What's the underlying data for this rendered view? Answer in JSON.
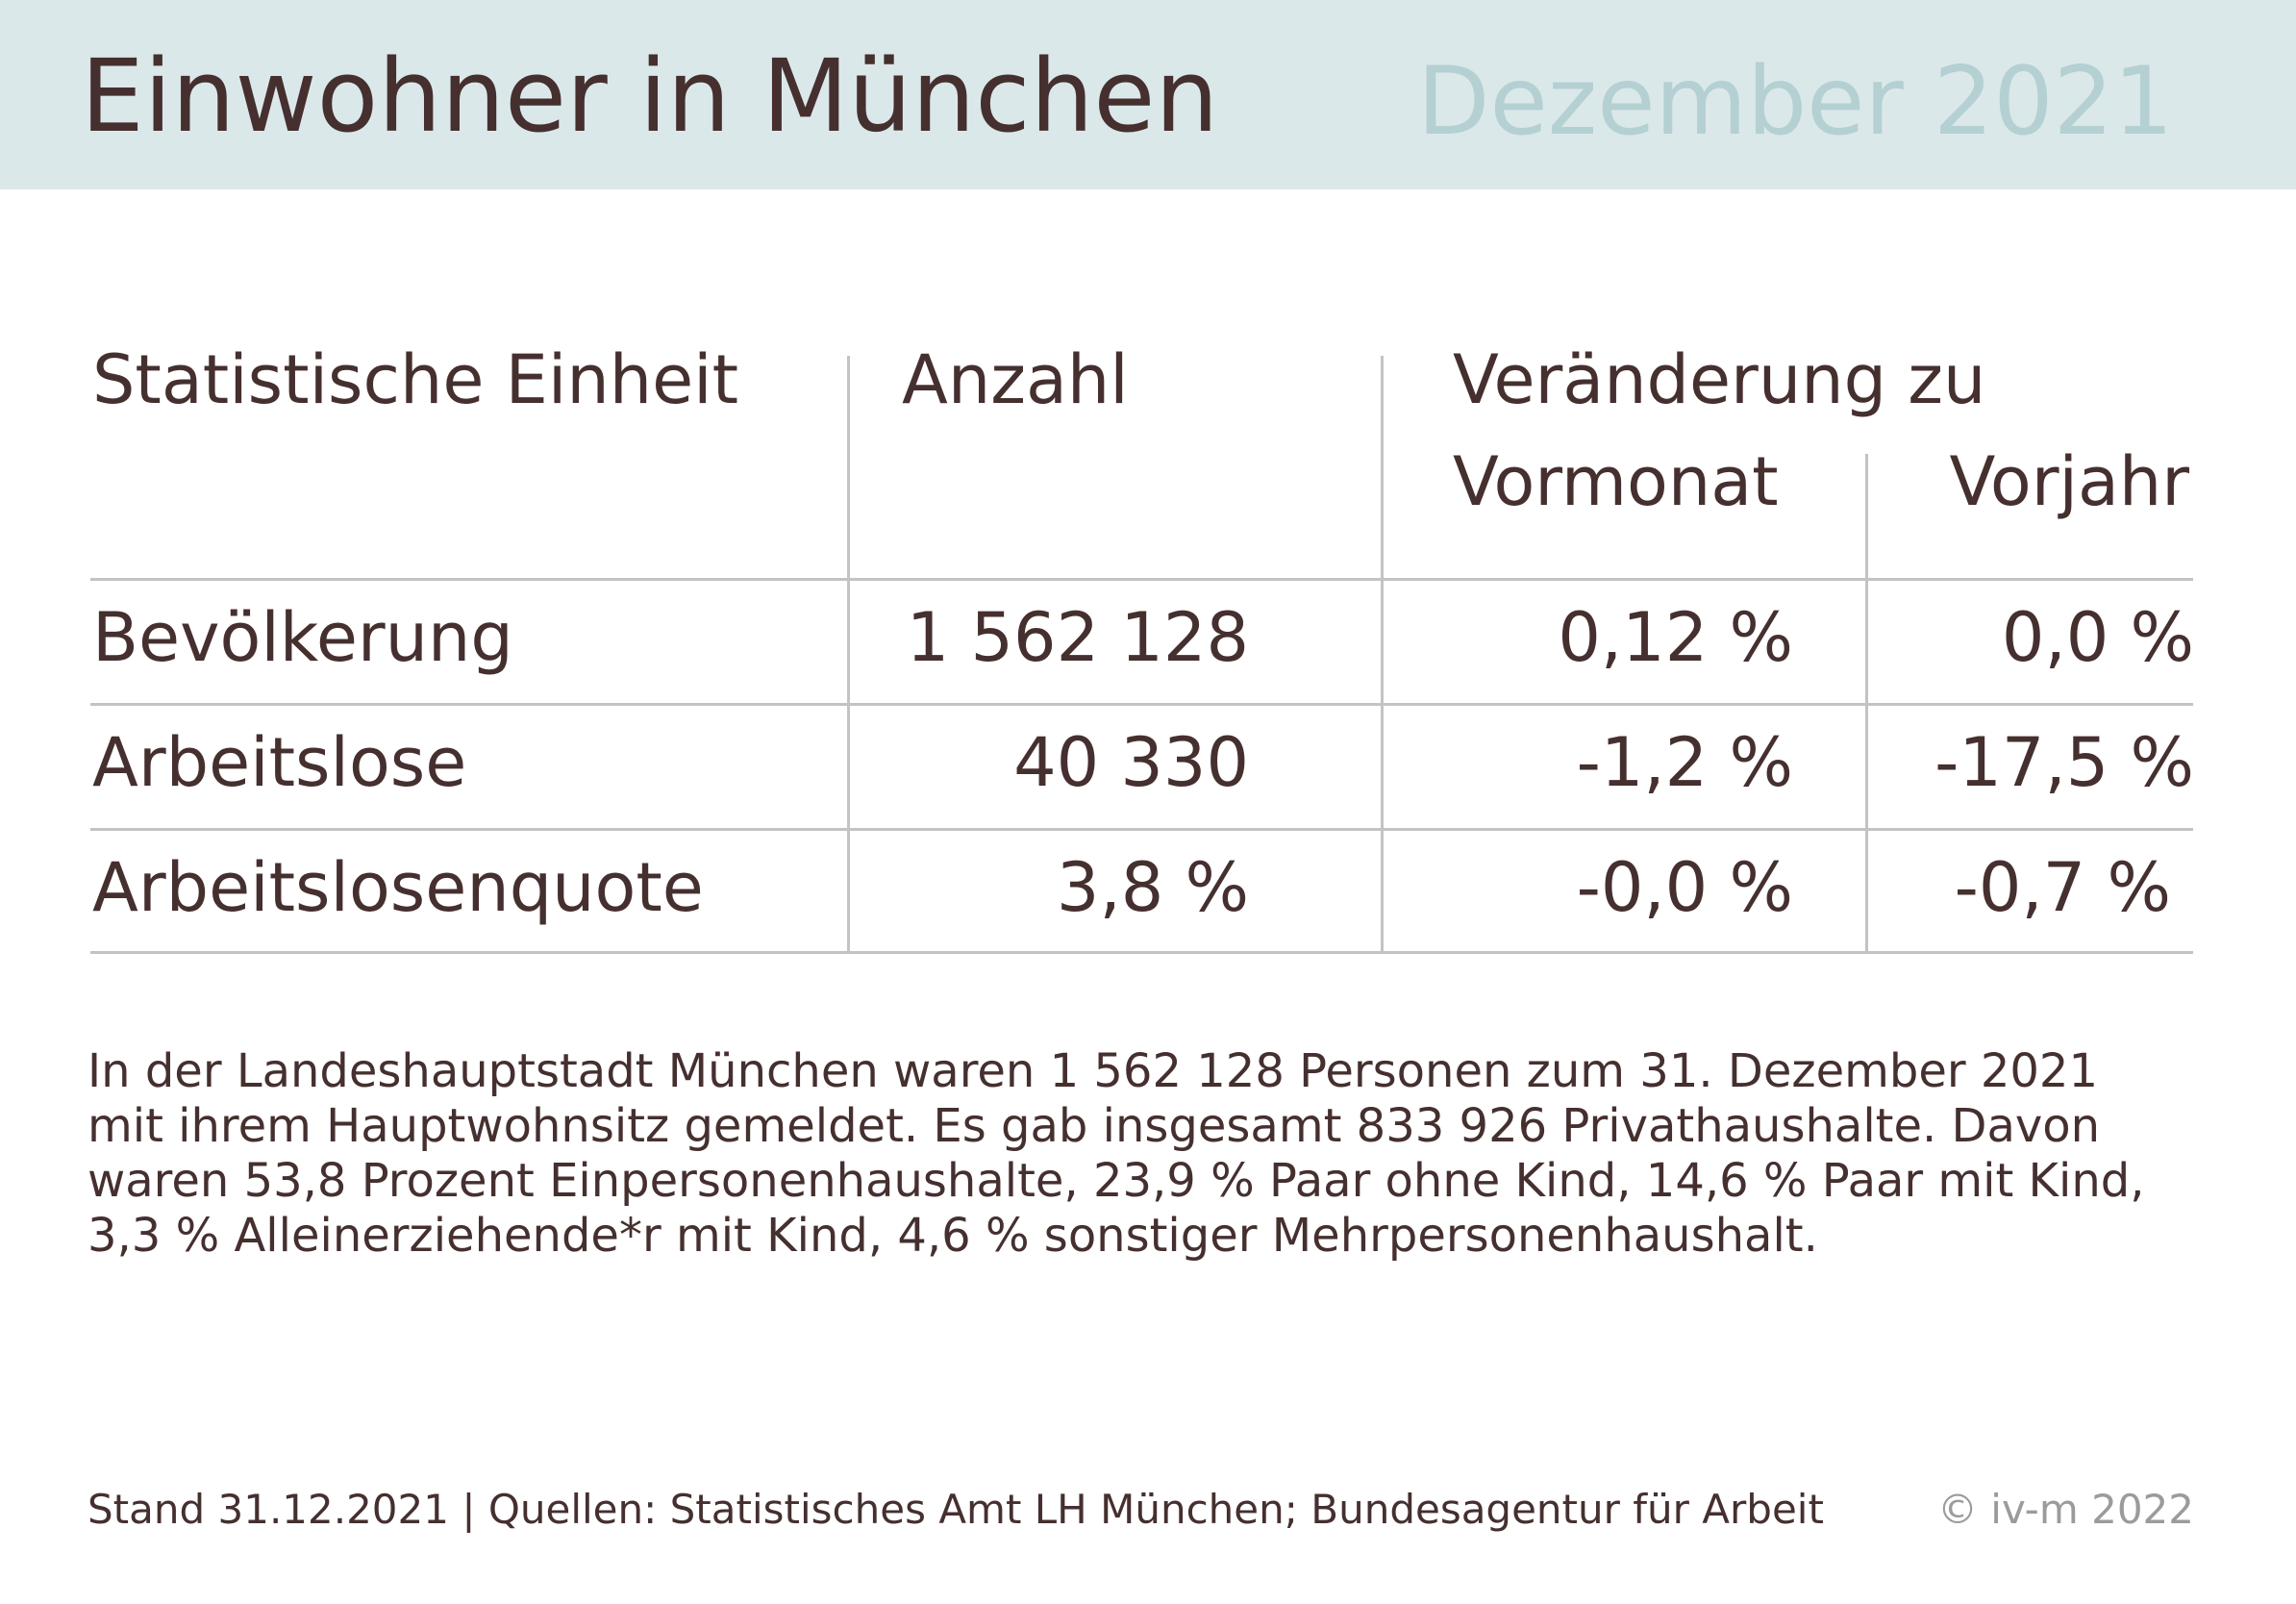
{
  "header": {
    "title": "Einwohner in München",
    "subtitle": "Dezember 2021"
  },
  "table": {
    "col_unit": "Statistische Einheit",
    "col_count": "Anzahl",
    "col_change": "Veränderung zu",
    "col_prev_month": "Vormonat",
    "col_prev_year": "Vorjahr",
    "rows": [
      {
        "label": "Bevölkerung",
        "count": "1 562 128",
        "prev_month": "0,12 %",
        "prev_year": "0,0 %"
      },
      {
        "label": "Arbeitslose",
        "count": "40 330",
        "prev_month": "-1,2 %",
        "prev_year": "-17,5 %"
      },
      {
        "label": "Arbeitslosenquote",
        "count": "3,8 %",
        "prev_month": "-0,0 %",
        "prev_year": "-0,7 %"
      }
    ]
  },
  "paragraph": [
    "In der Landeshauptstadt München waren 1 562 128 Personen zum 31. Dezember 2021",
    "mit ihrem Hauptwohnsitz gemeldet. Es gab insgesamt 833 926 Privathaushalte. Davon",
    "waren 53,8 Prozent Einpersonenhaushalte, 23,9 % Paar ohne Kind, 14,6 % Paar mit Kind,",
    "3,3 % Alleinerziehende*r mit Kind, 4,6 % sonstiger Mehrpersonenhaushalt."
  ],
  "footer": {
    "source": "Stand 31.12.2021 |  Quellen: Statistisches Amt LH München; Bundesagentur für Arbeit",
    "copyright": "© iv-m 2022"
  },
  "colors": {
    "header_bg": "#dbe8ea",
    "text": "#45302f",
    "subtitle": "#b4d0d3",
    "rule": "#c3c3c3",
    "copyright": "#9b9b9b"
  }
}
